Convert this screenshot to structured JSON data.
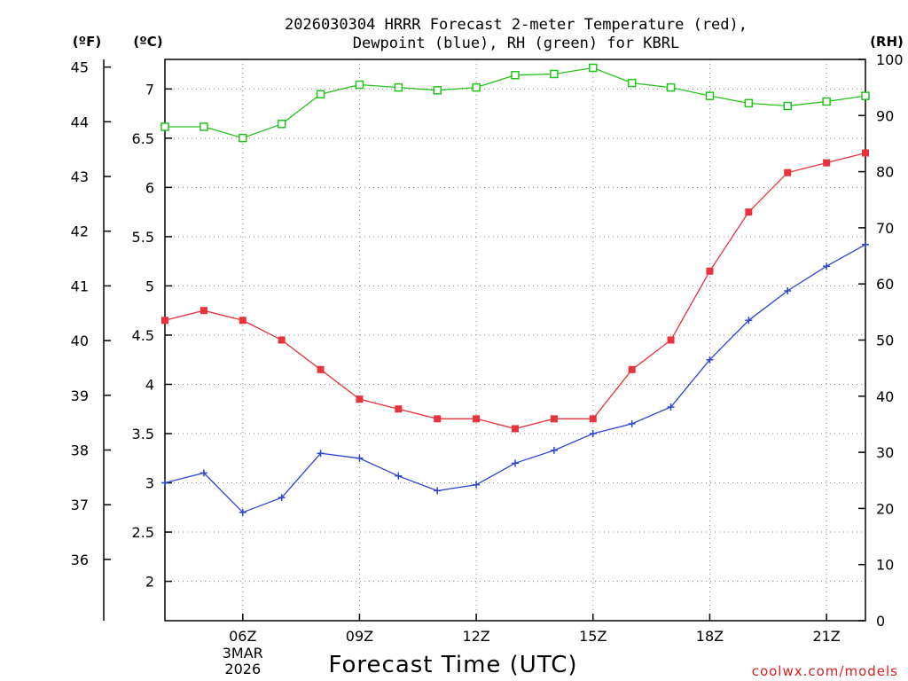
{
  "chart_data": {
    "type": "line",
    "title": [
      "2026030304 HRRR Forecast 2-meter Temperature (red),",
      "Dewpoint (blue), RH (green) for KBRL"
    ],
    "xlabel": "Forecast Time (UTC)",
    "credit": "coolwx.com/models",
    "units": {
      "left_outer": "(ºF)",
      "left_inner": "(ºC)",
      "right": "(RH)"
    },
    "x_hours": [
      4,
      5,
      6,
      7,
      8,
      9,
      10,
      11,
      12,
      13,
      14,
      15,
      16,
      17,
      18,
      19,
      20,
      21,
      22
    ],
    "xlim": [
      4,
      22
    ],
    "x_ticks": [
      {
        "hour": 6,
        "label": "06Z",
        "sub": [
          "3MAR",
          "2026"
        ]
      },
      {
        "hour": 9,
        "label": "09Z"
      },
      {
        "hour": 12,
        "label": "12Z"
      },
      {
        "hour": 15,
        "label": "15Z"
      },
      {
        "hour": 18,
        "label": "18Z"
      },
      {
        "hour": 21,
        "label": "21Z"
      }
    ],
    "y_celsius": {
      "range": [
        1.6,
        7.3
      ],
      "ticks": [
        "2",
        "2.5",
        "3",
        "3.5",
        "4",
        "4.5",
        "5",
        "5.5",
        "6",
        "6.5",
        "7"
      ]
    },
    "y_fahrenheit": {
      "ticks": [
        "36",
        "37",
        "38",
        "39",
        "40",
        "41",
        "42",
        "43",
        "44",
        "45"
      ]
    },
    "y_rh": {
      "range": [
        0,
        100
      ],
      "ticks": [
        "0",
        "10",
        "20",
        "30",
        "40",
        "50",
        "60",
        "70",
        "80",
        "90",
        "100"
      ]
    },
    "series": [
      {
        "name": "Temperature",
        "unit": "C",
        "axis": "celsius",
        "color": "#e8323c",
        "marker": "filled-square",
        "values": [
          4.65,
          4.75,
          4.65,
          4.45,
          4.15,
          3.85,
          3.75,
          3.65,
          3.65,
          3.55,
          3.65,
          3.65,
          4.15,
          4.45,
          5.15,
          5.75,
          6.15,
          6.25,
          6.35
        ]
      },
      {
        "name": "Dewpoint",
        "unit": "C",
        "axis": "celsius",
        "color": "#2d46d2",
        "marker": "plus",
        "values": [
          3.0,
          3.1,
          2.7,
          2.85,
          3.3,
          3.25,
          3.07,
          2.92,
          2.98,
          3.2,
          3.33,
          3.5,
          3.6,
          3.77,
          4.25,
          4.65,
          4.95,
          5.2,
          5.42
        ]
      },
      {
        "name": "RH",
        "unit": "%",
        "axis": "rh",
        "color": "#23c31e",
        "marker": "open-square",
        "values": [
          88,
          88,
          86,
          88.5,
          93.8,
          95.5,
          95,
          94.5,
          95,
          97.2,
          97.4,
          98.5,
          95.8,
          95,
          93.5,
          92.2,
          91.7,
          92.5,
          93.5
        ]
      }
    ]
  }
}
